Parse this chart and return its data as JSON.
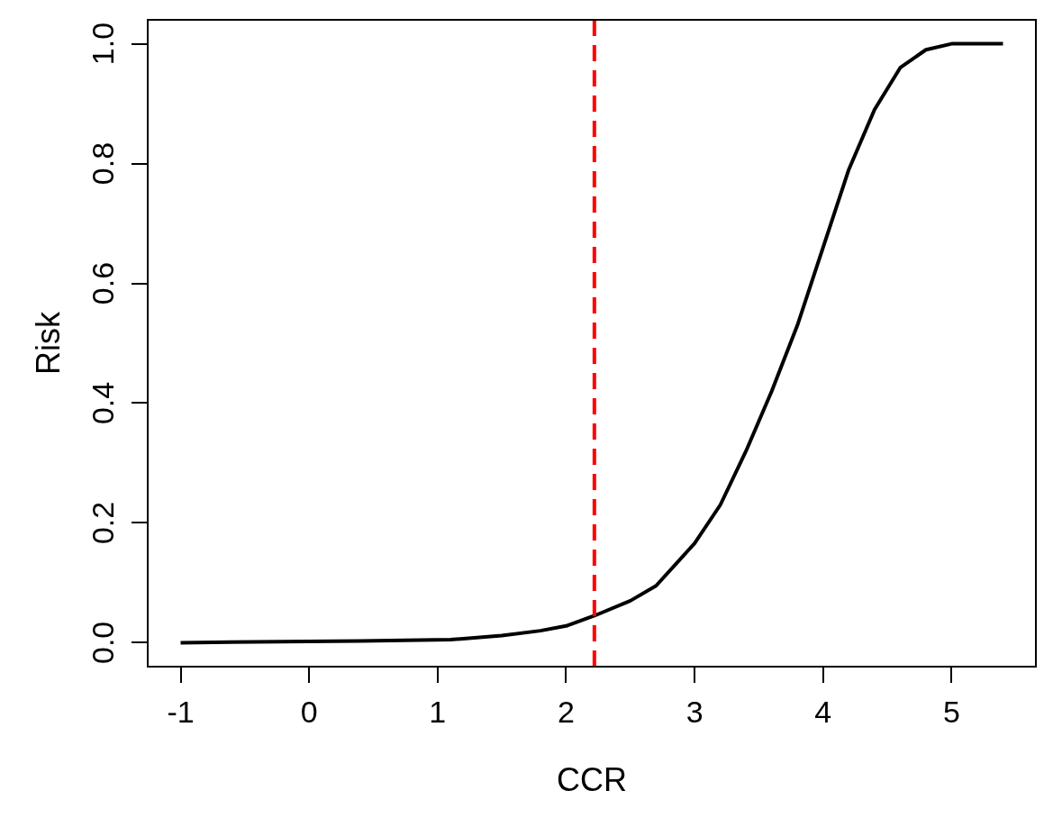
{
  "chart_data": {
    "type": "line",
    "xlabel": "CCR",
    "ylabel": "Risk",
    "xlim": [
      -1.256,
      5.656
    ],
    "xticks": [
      -1,
      0,
      1,
      2,
      3,
      4,
      5
    ],
    "ylim": [
      -0.04,
      1.04
    ],
    "yticks": [
      {
        "value": 0,
        "label": "0.0"
      },
      {
        "value": 0.2,
        "label": "0.2"
      },
      {
        "value": 0.4,
        "label": "0.4"
      },
      {
        "value": 0.6,
        "label": "0.6"
      },
      {
        "value": 0.8,
        "label": "0.8"
      },
      {
        "value": 1,
        "label": "1.0"
      }
    ],
    "grid": false,
    "legend": false,
    "marker": "none",
    "line_style": "solid",
    "series": [
      {
        "color": "#000000",
        "x": [
          -1,
          0.4,
          1.1,
          1.5,
          1.8,
          2,
          2.22,
          2.5,
          2.7,
          3,
          3.2,
          3.4,
          3.6,
          3.8,
          4,
          4.2,
          4.4,
          4.6,
          4.8,
          5,
          5.4
        ],
        "values": [
          0,
          0.003,
          0.005,
          0.012,
          0.02,
          0.028,
          0.045,
          0.07,
          0.095,
          0.166,
          0.23,
          0.32,
          0.42,
          0.53,
          0.66,
          0.79,
          0.89,
          0.96,
          0.99,
          1,
          1
        ]
      }
    ],
    "ref_lines": [
      {
        "axis": "x",
        "value": 2.22,
        "color": "#ff0000",
        "line_style": "dashed"
      }
    ]
  }
}
